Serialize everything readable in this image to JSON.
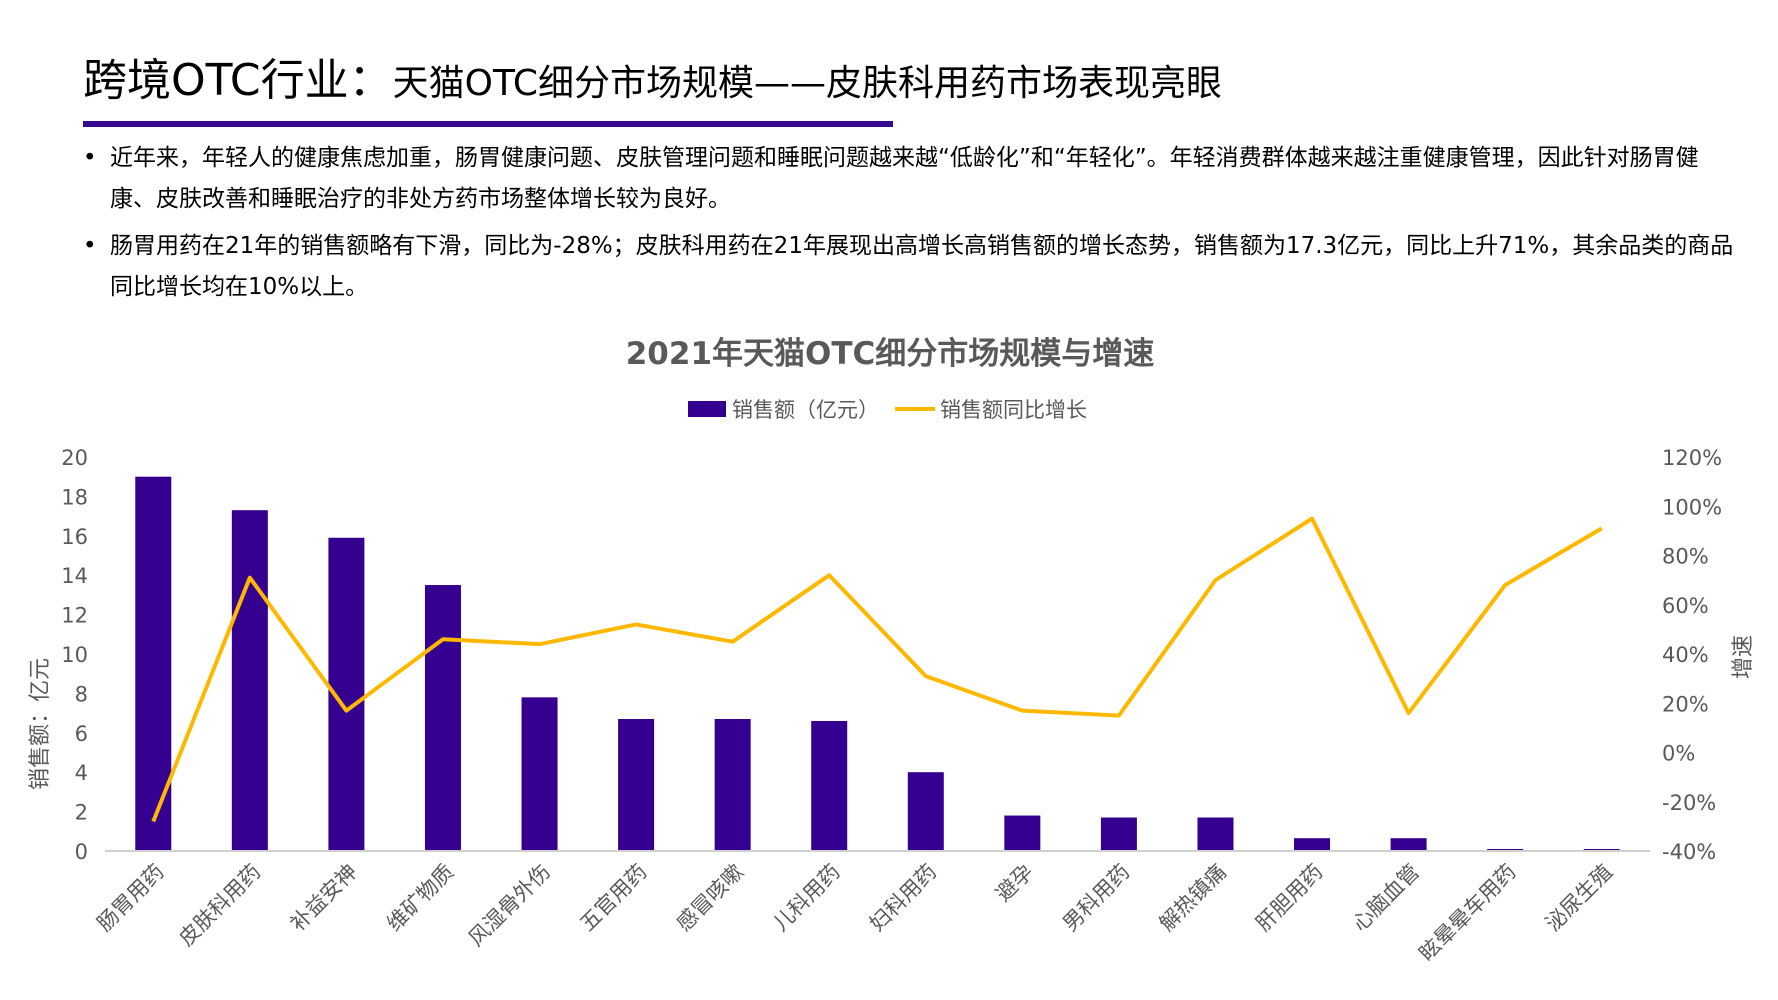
{
  "header": {
    "title_main": "跨境OTC行业：",
    "title_sub": "天猫OTC细分市场规模——皮肤科用药市场表现亮眼"
  },
  "bullets": [
    "近年来，年轻人的健康焦虑加重，肠胃健康问题、皮肤管理问题和睡眠问题越来越“低龄化”和“年轻化”。年轻消费群体越来越注重健康管理，因此针对肠胃健康、皮肤改善和睡眠治疗的非处方药市场整体增长较为良好。",
    "肠胃用药在21年的销售额略有下滑，同比为-28%；皮肤科用药在21年展现出高增长高销售额的增长态势，销售额为17.3亿元，同比上升71%，其余品类的商品同比增长均在10%以上。"
  ],
  "colors": {
    "bar": "#35008f",
    "line": "#ffb800",
    "rule": "#3a0a8c",
    "axis_text": "#595959"
  },
  "chart_data": {
    "type": "bar+line",
    "title": "2021年天猫OTC细分市场规模与增速",
    "ylabel": "销售额：亿元",
    "y2label": "增速",
    "legend_position": "top",
    "grid": false,
    "ylim": [
      0,
      20
    ],
    "yticks": [
      "0",
      "2",
      "4",
      "6",
      "8",
      "10",
      "12",
      "14",
      "16",
      "18",
      "20"
    ],
    "y2lim": [
      -40,
      120
    ],
    "y2ticks": [
      "-40%",
      "-20%",
      "0%",
      "20%",
      "40%",
      "60%",
      "80%",
      "100%",
      "120%"
    ],
    "categories": [
      "肠胃用药",
      "皮肤科用药",
      "补益安神",
      "维矿物质",
      "风湿骨外伤",
      "五官用药",
      "感冒咳嗽",
      "儿科用药",
      "妇科用药",
      "避孕",
      "男科用药",
      "解热镇痛",
      "肝胆用药",
      "心脑血管",
      "眩晕晕车用药",
      "泌尿生殖"
    ],
    "series": [
      {
        "name": "销售额（亿元）",
        "type": "bar",
        "axis": "left",
        "values": [
          19.0,
          17.3,
          15.9,
          13.5,
          7.8,
          6.7,
          6.7,
          6.6,
          4.0,
          1.8,
          1.7,
          1.7,
          0.65,
          0.65,
          0.1,
          0.1
        ]
      },
      {
        "name": "销售额同比增长",
        "type": "line",
        "axis": "right",
        "values": [
          -28,
          71,
          17,
          46,
          44,
          52,
          45,
          72,
          31,
          17,
          15,
          70,
          95,
          16,
          68,
          91
        ]
      }
    ]
  }
}
